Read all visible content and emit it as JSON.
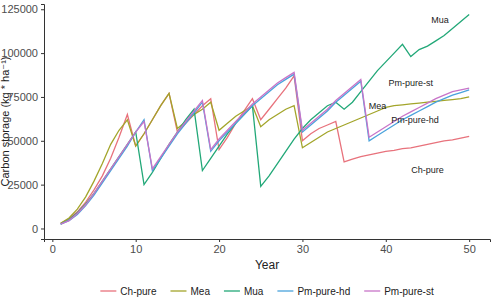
{
  "chart_data": {
    "type": "line",
    "x_label": "Year",
    "y_label": "Carbon storage (kg * ha⁻¹)",
    "x": [
      1,
      2,
      3,
      4,
      5,
      6,
      7,
      8,
      9,
      10,
      11,
      12,
      13,
      14,
      15,
      16,
      17,
      18,
      19,
      20,
      21,
      22,
      23,
      24,
      25,
      26,
      27,
      28,
      29,
      30,
      31,
      32,
      33,
      34,
      35,
      36,
      37,
      38,
      39,
      40,
      41,
      42,
      43,
      44,
      45,
      46,
      47,
      48,
      49,
      50
    ],
    "xlim": [
      -1,
      52.5
    ],
    "xticks": [
      0,
      10,
      20,
      30,
      40,
      50
    ],
    "ylim": [
      -6000,
      128000
    ],
    "yticks": [
      0,
      25000,
      50000,
      75000,
      100000,
      125000
    ],
    "grid": false,
    "legend": "bottom",
    "series": [
      {
        "name": "Ch-pure",
        "color": "#e8727c",
        "values": [
          3000,
          5500,
          9500,
          15000,
          22000,
          30000,
          40000,
          52000,
          65000,
          47000,
          54000,
          62000,
          70000,
          77000,
          55000,
          60000,
          65000,
          70000,
          74000,
          45000,
          52000,
          60000,
          67000,
          74000,
          62000,
          68000,
          74000,
          80000,
          87000,
          50000,
          54000,
          57000,
          59000,
          61000,
          38000,
          39500,
          41000,
          42000,
          43000,
          44000,
          44500,
          45500,
          46000,
          47000,
          48000,
          49000,
          50000,
          50500,
          51500,
          52500
        ]
      },
      {
        "name": "Mea",
        "color": "#a3a52a",
        "values": [
          3000,
          6000,
          11000,
          18000,
          27000,
          37000,
          48000,
          56000,
          62000,
          47000,
          54000,
          62000,
          70000,
          77000,
          57000,
          61000,
          65000,
          68000,
          72000,
          56000,
          60000,
          64000,
          67000,
          70000,
          58000,
          62000,
          65000,
          68000,
          70000,
          46000,
          49000,
          52000,
          55000,
          57000,
          59000,
          61000,
          63000,
          65000,
          67000,
          69000,
          70000,
          70500,
          71000,
          71500,
          72000,
          72500,
          73000,
          73500,
          74000,
          75000
        ]
      },
      {
        "name": "Mua",
        "color": "#22a878",
        "values": [
          2500,
          5000,
          9000,
          14000,
          20000,
          27000,
          34000,
          41000,
          48000,
          55000,
          25000,
          32000,
          40000,
          48000,
          55000,
          62000,
          68000,
          33000,
          40000,
          47000,
          54000,
          60000,
          65000,
          70000,
          24000,
          30000,
          37000,
          44000,
          51000,
          57000,
          62000,
          66000,
          70000,
          72000,
          68000,
          72000,
          78000,
          84000,
          90000,
          95000,
          100000,
          105000,
          98000,
          102000,
          104000,
          107000,
          110000,
          114000,
          118000,
          122000
        ]
      },
      {
        "name": "Pm-pure-hd",
        "color": "#4aa3dc",
        "values": [
          2500,
          4500,
          8000,
          13000,
          19000,
          26000,
          33000,
          40000,
          47000,
          55000,
          62000,
          33000,
          40000,
          47000,
          54000,
          60000,
          66000,
          72000,
          44000,
          50000,
          55000,
          60000,
          65000,
          70000,
          74000,
          78000,
          82000,
          85000,
          88000,
          55000,
          59000,
          63000,
          67000,
          72000,
          76000,
          80000,
          84000,
          50000,
          53000,
          56000,
          59000,
          62000,
          64500,
          67000,
          69500,
          72000,
          74000,
          76000,
          77500,
          79000
        ]
      },
      {
        "name": "Pm-pure-st",
        "color": "#c874c8",
        "values": [
          2500,
          4500,
          8500,
          13500,
          20000,
          27000,
          34000,
          41000,
          48000,
          55000,
          61000,
          34000,
          41000,
          48000,
          55000,
          61000,
          67000,
          73000,
          45000,
          51000,
          56000,
          61000,
          66000,
          71000,
          75000,
          79000,
          83000,
          86000,
          89000,
          56000,
          60000,
          64000,
          68000,
          73000,
          77000,
          81000,
          85000,
          52000,
          55000,
          58000,
          61000,
          64000,
          66500,
          69000,
          71500,
          74000,
          76000,
          78000,
          79000,
          80000
        ]
      }
    ],
    "annotations": [
      {
        "text": "Mua",
        "x": 46.5,
        "y": 117000
      },
      {
        "text": "Pm-pure-st",
        "x": 43,
        "y": 81500
      },
      {
        "text": "Mea",
        "x": 39,
        "y": 68000
      },
      {
        "text": "Pm-pure-hd",
        "x": 43.5,
        "y": 60000
      },
      {
        "text": "Ch-pure",
        "x": 45,
        "y": 31500
      }
    ]
  }
}
